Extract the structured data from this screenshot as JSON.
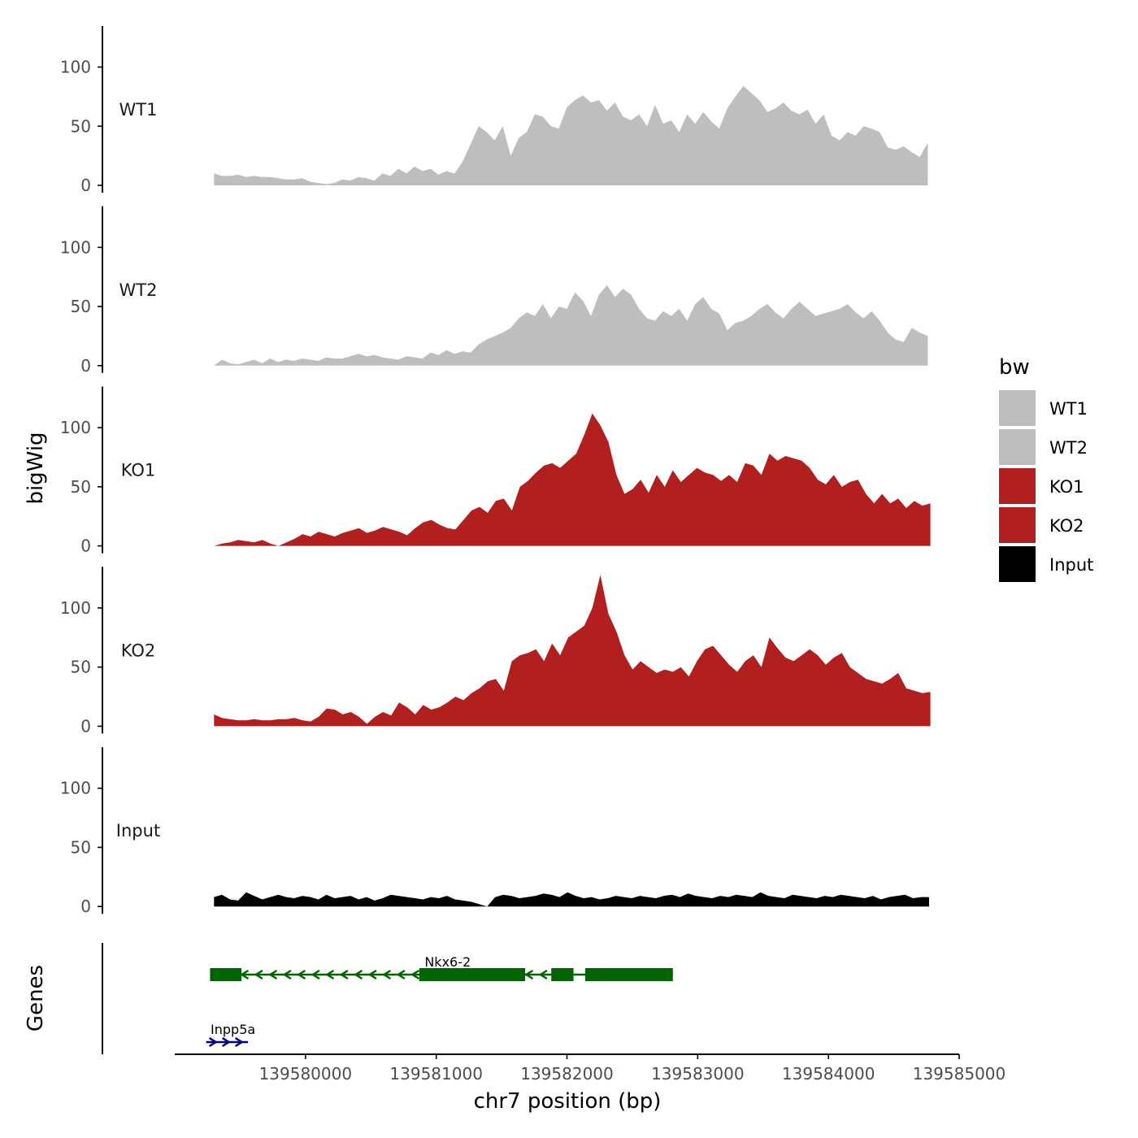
{
  "chart_data": {
    "type": "area",
    "xlabel": "chr7 position (bp)",
    "ylabel": "bigWig",
    "genes_label": "Genes",
    "xlim": [
      139579000,
      139585000
    ],
    "x_ticks": [
      139580000,
      139581000,
      139582000,
      139583000,
      139584000,
      139585000
    ],
    "x_tick_labels": [
      "139580000",
      "139581000",
      "139582000",
      "139583000",
      "139584000",
      "139585000"
    ],
    "ylim": [
      0,
      135
    ],
    "y_ticks": [
      0,
      50,
      100
    ],
    "y_tick_labels": [
      "0",
      "50",
      "100"
    ],
    "legend": {
      "title": "bw",
      "position": "right"
    },
    "series": [
      {
        "name": "WT1",
        "color": "#bebebe",
        "x_start": 139579300,
        "x_end": 139584760,
        "values": [
          10,
          8,
          8,
          9,
          7,
          8,
          7,
          7,
          6,
          5,
          5,
          6,
          3,
          2,
          1,
          2,
          5,
          4,
          7,
          6,
          4,
          10,
          8,
          14,
          10,
          16,
          12,
          14,
          9,
          12,
          10,
          20,
          35,
          50,
          45,
          38,
          50,
          25,
          40,
          45,
          60,
          58,
          50,
          48,
          66,
          72,
          76,
          70,
          72,
          63,
          70,
          58,
          55,
          60,
          50,
          68,
          52,
          55,
          45,
          60,
          52,
          62,
          54,
          48,
          65,
          75,
          84,
          78,
          72,
          62,
          65,
          70,
          63,
          60,
          64,
          52,
          60,
          42,
          38,
          45,
          42,
          50,
          48,
          45,
          32,
          30,
          33,
          28,
          24,
          36
        ]
      },
      {
        "name": "WT2",
        "color": "#bebebe",
        "x_start": 139579300,
        "x_end": 139584760,
        "values": [
          0,
          5,
          2,
          1,
          3,
          5,
          2,
          6,
          3,
          5,
          4,
          6,
          5,
          4,
          7,
          6,
          6,
          8,
          10,
          8,
          9,
          7,
          6,
          5,
          8,
          7,
          6,
          11,
          9,
          13,
          10,
          12,
          11,
          18,
          22,
          25,
          28,
          32,
          40,
          45,
          42,
          52,
          40,
          50,
          48,
          62,
          55,
          42,
          60,
          68,
          58,
          65,
          60,
          48,
          40,
          38,
          46,
          42,
          48,
          38,
          52,
          58,
          48,
          44,
          30,
          36,
          38,
          42,
          48,
          52,
          45,
          40,
          48,
          54,
          48,
          42,
          44,
          46,
          48,
          52,
          45,
          40,
          46,
          38,
          28,
          22,
          20,
          32,
          28,
          25
        ]
      },
      {
        "name": "KO1",
        "color": "#b21f1f",
        "x_start": 139579300,
        "x_end": 139584780,
        "values": [
          0,
          2,
          3,
          5,
          4,
          3,
          5,
          2,
          0,
          3,
          6,
          10,
          8,
          12,
          10,
          8,
          11,
          13,
          15,
          11,
          13,
          16,
          14,
          12,
          9,
          15,
          20,
          22,
          18,
          15,
          14,
          22,
          30,
          33,
          28,
          38,
          40,
          30,
          50,
          55,
          62,
          68,
          70,
          66,
          72,
          78,
          94,
          112,
          102,
          88,
          60,
          44,
          48,
          56,
          45,
          60,
          50,
          64,
          54,
          60,
          66,
          62,
          60,
          55,
          60,
          54,
          70,
          68,
          60,
          78,
          72,
          76,
          74,
          72,
          66,
          56,
          52,
          60,
          50,
          54,
          56,
          44,
          36,
          44,
          36,
          40,
          32,
          38,
          34,
          36
        ]
      },
      {
        "name": "KO2",
        "color": "#b21f1f",
        "x_start": 139579300,
        "x_end": 139584780,
        "values": [
          10,
          7,
          6,
          5,
          5,
          6,
          5,
          5,
          6,
          6,
          7,
          5,
          4,
          8,
          15,
          14,
          10,
          12,
          8,
          2,
          8,
          12,
          9,
          20,
          16,
          10,
          18,
          14,
          16,
          20,
          25,
          22,
          28,
          32,
          38,
          40,
          30,
          55,
          60,
          62,
          65,
          55,
          70,
          60,
          75,
          80,
          85,
          100,
          128,
          95,
          80,
          60,
          48,
          55,
          50,
          45,
          48,
          46,
          50,
          42,
          55,
          65,
          68,
          60,
          52,
          46,
          55,
          60,
          50,
          75,
          66,
          58,
          55,
          60,
          65,
          60,
          52,
          58,
          62,
          50,
          45,
          40,
          38,
          36,
          40,
          45,
          32,
          30,
          28,
          29
        ]
      },
      {
        "name": "Input",
        "color": "#000000",
        "x_start": 139579300,
        "x_end": 139584770,
        "values": [
          8,
          10,
          6,
          5,
          12,
          9,
          6,
          8,
          10,
          8,
          7,
          9,
          8,
          6,
          10,
          7,
          8,
          9,
          6,
          8,
          5,
          7,
          10,
          9,
          8,
          7,
          6,
          8,
          7,
          9,
          6,
          5,
          4,
          2,
          0,
          8,
          10,
          9,
          7,
          8,
          9,
          11,
          10,
          8,
          12,
          9,
          7,
          8,
          6,
          7,
          9,
          8,
          7,
          9,
          8,
          7,
          9,
          10,
          8,
          11,
          9,
          8,
          7,
          9,
          8,
          10,
          9,
          8,
          12,
          9,
          8,
          7,
          10,
          9,
          8,
          7,
          9,
          8,
          10,
          9,
          8,
          7,
          9,
          6,
          8,
          9,
          10,
          7,
          8,
          8
        ]
      }
    ],
    "genes": [
      {
        "name": "Nkx6-2",
        "color": "#006400",
        "strand": "-",
        "start": 139579270,
        "end": 139582810,
        "exons": [
          [
            139579270,
            139579510
          ],
          [
            139580870,
            139581680
          ],
          [
            139581880,
            139582050
          ],
          [
            139582140,
            139582810
          ]
        ]
      },
      {
        "name": "Inpp5a",
        "color": "#00008b",
        "strand": "+",
        "start": 139579240,
        "end": 139579560,
        "exons": []
      }
    ]
  }
}
